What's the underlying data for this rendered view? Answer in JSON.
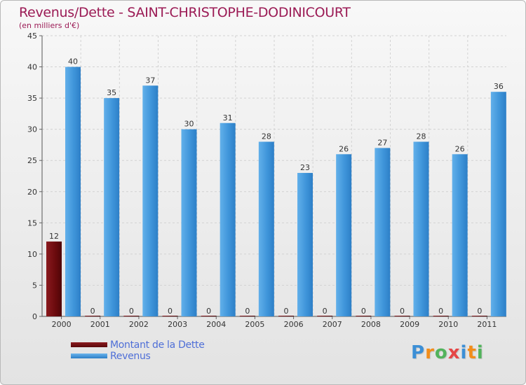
{
  "header": {
    "title": "Revenus/Dette - SAINT-CHRISTOPHE-DODINICOURT",
    "subtitle": "(en milliers d'€)"
  },
  "chart_data": {
    "type": "bar",
    "title": "Revenus/Dette - SAINT-CHRISTOPHE-DODINICOURT",
    "ylabel": "(en milliers d'€)",
    "xlabel": "",
    "ylim": [
      0,
      45
    ],
    "yticks": [
      0,
      5,
      10,
      15,
      20,
      25,
      30,
      35,
      40,
      45
    ],
    "grid": true,
    "categories": [
      "2000",
      "2001",
      "2002",
      "2003",
      "2004",
      "2005",
      "2006",
      "2007",
      "2008",
      "2009",
      "2010",
      "2011"
    ],
    "series": [
      {
        "name": "Montant de la Dette",
        "color": "#6e0b0e",
        "values": [
          12,
          0,
          0,
          0,
          0,
          0,
          0,
          0,
          0,
          0,
          0,
          0
        ]
      },
      {
        "name": "Revenus",
        "color": "#3e93d8",
        "values": [
          40,
          35,
          37,
          30,
          31,
          28,
          23,
          26,
          27,
          28,
          26,
          36
        ]
      }
    ],
    "legend_position": "bottom-left"
  },
  "logo": {
    "letters": [
      "P",
      "r",
      "o",
      "x",
      "i",
      "t",
      "i"
    ],
    "colors": [
      "#3c8fd6",
      "#f28d1a",
      "#52b35c",
      "#e54545",
      "#3c8fd6",
      "#f28d1a",
      "#52b35c"
    ]
  }
}
